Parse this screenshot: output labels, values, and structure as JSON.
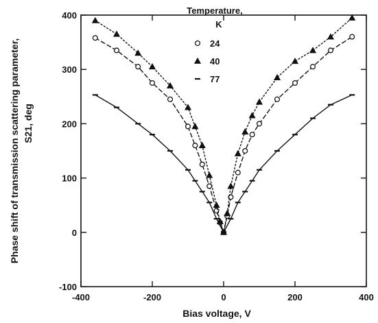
{
  "chart_data": {
    "type": "scatter",
    "title": "",
    "xlabel": "Bias voltage, V",
    "ylabel": "Phase shift of transmission scattering parameter,",
    "ylabel2": "S21, deg",
    "xlim": [
      -400,
      400
    ],
    "ylim": [
      -100,
      400
    ],
    "xticks": [
      -400,
      -200,
      0,
      200,
      400
    ],
    "yticks": [
      -100,
      0,
      100,
      200,
      300,
      400
    ],
    "grid": false,
    "legend": {
      "placement": "top-center",
      "title_line1": "Temperature,",
      "title_line2": "K",
      "entries": [
        {
          "label": "24",
          "marker": "circle"
        },
        {
          "label": "40",
          "marker": "triangle"
        },
        {
          "label": "77",
          "marker": "dash"
        }
      ]
    },
    "series": [
      {
        "name": "24",
        "marker": "circle",
        "line": "dashed",
        "points": [
          [
            -360,
            358
          ],
          [
            -300,
            335
          ],
          [
            -240,
            305
          ],
          [
            -200,
            275
          ],
          [
            -150,
            245
          ],
          [
            -100,
            195
          ],
          [
            -80,
            160
          ],
          [
            -60,
            125
          ],
          [
            -40,
            85
          ],
          [
            -20,
            40
          ],
          [
            -10,
            18
          ],
          [
            0,
            0
          ],
          [
            10,
            30
          ],
          [
            20,
            65
          ],
          [
            40,
            110
          ],
          [
            60,
            150
          ],
          [
            80,
            180
          ],
          [
            100,
            200
          ],
          [
            150,
            245
          ],
          [
            200,
            275
          ],
          [
            250,
            305
          ],
          [
            300,
            335
          ],
          [
            360,
            360
          ]
        ]
      },
      {
        "name": "40",
        "marker": "triangle",
        "line": "dotted",
        "points": [
          [
            -360,
            390
          ],
          [
            -300,
            365
          ],
          [
            -240,
            330
          ],
          [
            -200,
            305
          ],
          [
            -150,
            270
          ],
          [
            -100,
            230
          ],
          [
            -80,
            195
          ],
          [
            -60,
            160
          ],
          [
            -40,
            105
          ],
          [
            -20,
            50
          ],
          [
            -10,
            20
          ],
          [
            0,
            0
          ],
          [
            10,
            35
          ],
          [
            20,
            85
          ],
          [
            40,
            145
          ],
          [
            60,
            185
          ],
          [
            80,
            215
          ],
          [
            100,
            240
          ],
          [
            150,
            285
          ],
          [
            200,
            315
          ],
          [
            250,
            335
          ],
          [
            300,
            360
          ],
          [
            360,
            395
          ]
        ]
      },
      {
        "name": "77",
        "marker": "dash",
        "line": "solid",
        "points": [
          [
            -360,
            253
          ],
          [
            -300,
            230
          ],
          [
            -240,
            200
          ],
          [
            -200,
            180
          ],
          [
            -150,
            150
          ],
          [
            -100,
            115
          ],
          [
            -80,
            95
          ],
          [
            -60,
            75
          ],
          [
            -40,
            55
          ],
          [
            -20,
            25
          ],
          [
            0,
            0
          ],
          [
            20,
            25
          ],
          [
            40,
            55
          ],
          [
            60,
            75
          ],
          [
            80,
            95
          ],
          [
            100,
            115
          ],
          [
            150,
            150
          ],
          [
            200,
            180
          ],
          [
            250,
            210
          ],
          [
            300,
            235
          ],
          [
            360,
            253
          ]
        ]
      }
    ]
  }
}
